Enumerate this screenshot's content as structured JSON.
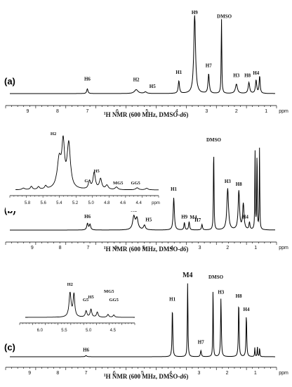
{
  "chart_data": [
    {
      "type": "line",
      "panel_label": "(a)",
      "xlabel_prefix": "1",
      "xlabel_main": "H NMR (600 MHz, DMSO-",
      "xlabel_ital": "d6",
      "xlabel_end": ")",
      "unit": "ppm",
      "xlim": [
        9.6,
        0.7
      ],
      "xticks": [
        "9",
        "8",
        "7",
        "6",
        "5",
        "4",
        "3",
        "2",
        "1"
      ],
      "peaks": [
        {
          "ppm": 7.0,
          "h": 0.06,
          "w": 0.025,
          "label": "H6"
        },
        {
          "ppm": 5.36,
          "h": 0.05,
          "w": 0.07,
          "label": "H2"
        },
        {
          "ppm": 5.05,
          "h": 0.02,
          "w": 0.05,
          "label": "H5"
        },
        {
          "ppm": 3.93,
          "h": 0.16,
          "w": 0.025,
          "label": "H1"
        },
        {
          "ppm": 3.4,
          "h": 1.0,
          "w": 0.035,
          "label": "H9"
        },
        {
          "ppm": 2.93,
          "h": 0.25,
          "w": 0.025,
          "label": "H7"
        },
        {
          "ppm": 2.5,
          "h": 0.95,
          "w": 0.012,
          "label": "DMSO"
        },
        {
          "ppm": 2.0,
          "h": 0.12,
          "w": 0.04,
          "label": "H3"
        },
        {
          "ppm": 1.58,
          "h": 0.14,
          "w": 0.03,
          "label": "H8"
        },
        {
          "ppm": 1.34,
          "h": 0.17,
          "w": 0.025,
          "label": "H4"
        },
        {
          "ppm": 1.22,
          "h": 0.22,
          "w": 0.02,
          "label": ""
        }
      ]
    },
    {
      "type": "line",
      "panel_label": "(b)",
      "xlabel_prefix": "1",
      "xlabel_main": "H NMR (600 MHz, DMSO-",
      "xlabel_ital": "d6",
      "xlabel_end": ")",
      "unit": "ppm",
      "xlim": [
        9.8,
        0.3
      ],
      "xticks": [
        "9",
        "8",
        "7",
        "6",
        "5",
        "4",
        "3",
        "2",
        "1"
      ],
      "peaks": [
        {
          "ppm": 7.02,
          "h": 0.07,
          "w": 0.03,
          "label": "H6"
        },
        {
          "ppm": 6.93,
          "h": 0.06,
          "w": 0.03,
          "label": ""
        },
        {
          "ppm": 5.36,
          "h": 0.14,
          "w": 0.05,
          "label": "H2"
        },
        {
          "ppm": 5.25,
          "h": 0.12,
          "w": 0.05,
          "label": ""
        },
        {
          "ppm": 4.98,
          "h": 0.05,
          "w": 0.04,
          "label": "H5"
        },
        {
          "ppm": 3.93,
          "h": 0.35,
          "w": 0.025,
          "label": "H1"
        },
        {
          "ppm": 3.55,
          "h": 0.08,
          "w": 0.02,
          "label": "H9"
        },
        {
          "ppm": 3.38,
          "h": 0.09,
          "w": 0.02,
          "label": "M4"
        },
        {
          "ppm": 2.92,
          "h": 0.06,
          "w": 0.02,
          "label": "H7"
        },
        {
          "ppm": 2.5,
          "h": 0.9,
          "w": 0.012,
          "label": "DMSO"
        },
        {
          "ppm": 2.0,
          "h": 0.45,
          "w": 0.035,
          "label": "H3"
        },
        {
          "ppm": 1.6,
          "h": 0.42,
          "w": 0.03,
          "label": "H8"
        },
        {
          "ppm": 1.44,
          "h": 0.28,
          "w": 0.03,
          "label": ""
        },
        {
          "ppm": 1.22,
          "h": 0.08,
          "w": 0.02,
          "label": "H4"
        },
        {
          "ppm": 1.02,
          "h": 0.88,
          "w": 0.01,
          "label": ""
        },
        {
          "ppm": 0.95,
          "h": 0.9,
          "w": 0.01,
          "label": ""
        },
        {
          "ppm": 0.86,
          "h": 0.88,
          "w": 0.01,
          "label": ""
        }
      ],
      "inset": {
        "xlim": [
          5.95,
          4.15
        ],
        "xticks": [
          "5.8",
          "5.6",
          "5.4",
          "5.2",
          "5.0",
          "4.8",
          "4.6",
          "4.4"
        ],
        "unit": "ppm",
        "labels": [
          "H2",
          "H5",
          "G5",
          "MG5",
          "GG5"
        ],
        "peaks": [
          {
            "ppm": 5.85,
            "h": 0.03,
            "w": 0.02
          },
          {
            "ppm": 5.75,
            "h": 0.06,
            "w": 0.015
          },
          {
            "ppm": 5.66,
            "h": 0.05,
            "w": 0.015
          },
          {
            "ppm": 5.57,
            "h": 0.06,
            "w": 0.015
          },
          {
            "ppm": 5.4,
            "h": 0.55,
            "w": 0.03
          },
          {
            "ppm": 5.35,
            "h": 0.8,
            "w": 0.02
          },
          {
            "ppm": 5.28,
            "h": 0.85,
            "w": 0.025
          },
          {
            "ppm": 5.02,
            "h": 0.15,
            "w": 0.015
          },
          {
            "ppm": 4.96,
            "h": 0.32,
            "w": 0.018
          },
          {
            "ppm": 4.88,
            "h": 0.2,
            "w": 0.018
          },
          {
            "ppm": 4.8,
            "h": 0.08,
            "w": 0.02
          },
          {
            "ppm": 4.68,
            "h": 0.05,
            "w": 0.02
          },
          {
            "ppm": 4.42,
            "h": 0.04,
            "w": 0.02
          },
          {
            "ppm": 4.3,
            "h": 0.03,
            "w": 0.02
          }
        ]
      }
    },
    {
      "type": "line",
      "panel_label": "(c)",
      "xlabel_prefix": "1",
      "xlabel_main": "H NMR (600 MHz, DMSO-",
      "xlabel_ital": "d6",
      "xlabel_end": ")",
      "unit": "ppm",
      "xlim": [
        9.7,
        0.3
      ],
      "xticks": [
        "9",
        "8",
        "7",
        "6",
        "5",
        "4",
        "3",
        "2",
        "1"
      ],
      "peaks": [
        {
          "ppm": 7.0,
          "h": 0.015,
          "w": 0.03,
          "label": "H6"
        },
        {
          "ppm": 3.94,
          "h": 0.65,
          "w": 0.015,
          "label": "H1"
        },
        {
          "ppm": 3.4,
          "h": 1.0,
          "w": 0.012,
          "label": "M4"
        },
        {
          "ppm": 2.93,
          "h": 0.08,
          "w": 0.02,
          "label": "H7"
        },
        {
          "ppm": 2.5,
          "h": 0.98,
          "w": 0.01,
          "label": "DMSO"
        },
        {
          "ppm": 2.22,
          "h": 0.78,
          "w": 0.015,
          "label": "H3"
        },
        {
          "ppm": 1.59,
          "h": 0.73,
          "w": 0.015,
          "label": "H8"
        },
        {
          "ppm": 1.32,
          "h": 0.55,
          "w": 0.015,
          "label": "H4"
        },
        {
          "ppm": 1.02,
          "h": 0.12,
          "w": 0.01,
          "label": ""
        },
        {
          "ppm": 0.93,
          "h": 0.14,
          "w": 0.01,
          "label": ""
        },
        {
          "ppm": 0.85,
          "h": 0.12,
          "w": 0.01,
          "label": ""
        }
      ],
      "inset": {
        "xlim": [
          6.3,
          4.05
        ],
        "xticks": [
          "6.0",
          "5.5",
          "5.0",
          "4.5"
        ],
        "unit": "",
        "labels": [
          "H2",
          "G5",
          "H5",
          "MG5",
          "GG5"
        ],
        "peaks": [
          {
            "ppm": 5.38,
            "h": 0.85,
            "w": 0.025
          },
          {
            "ppm": 5.3,
            "h": 0.8,
            "w": 0.02
          },
          {
            "ppm": 5.05,
            "h": 0.22,
            "w": 0.02
          },
          {
            "ppm": 4.95,
            "h": 0.28,
            "w": 0.02
          },
          {
            "ppm": 4.82,
            "h": 0.18,
            "w": 0.02
          },
          {
            "ppm": 4.6,
            "h": 0.1,
            "w": 0.02
          },
          {
            "ppm": 4.48,
            "h": 0.08,
            "w": 0.02
          }
        ]
      }
    }
  ]
}
